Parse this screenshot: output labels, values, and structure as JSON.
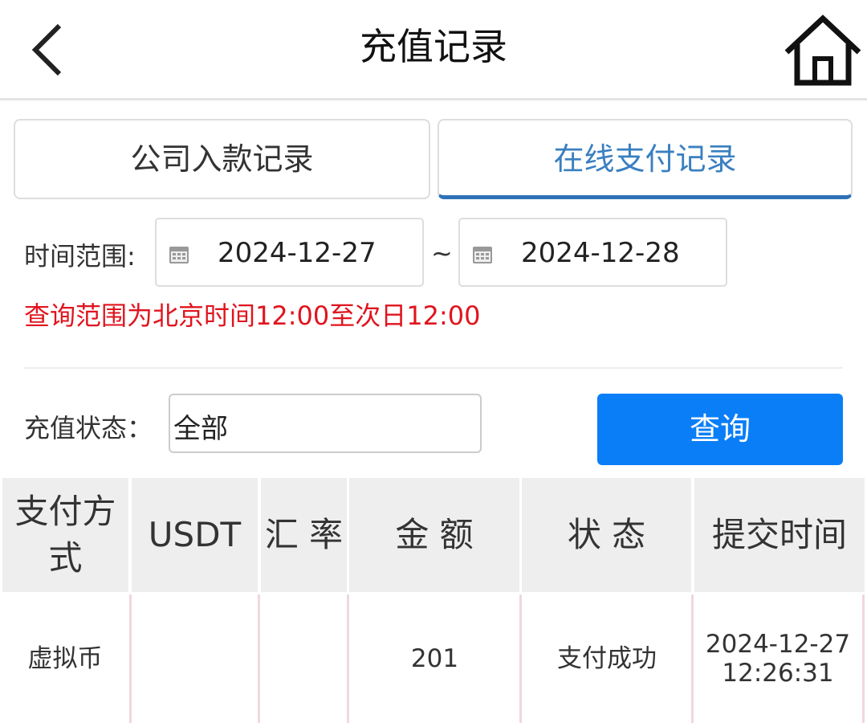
{
  "header": {
    "title": "充值记录",
    "back_icon": "chevron-left-icon",
    "home_icon": "home-icon"
  },
  "tabs": [
    {
      "label": "公司入款记录",
      "active": false
    },
    {
      "label": "在线支付记录",
      "active": true
    }
  ],
  "filter": {
    "time_range_label": "时间范围:",
    "start_date": "2024-12-27",
    "separator": "~",
    "end_date": "2024-12-28",
    "notice": "查询范围为北京时间12:00至次日12:00",
    "status_label": "充值状态：",
    "status_value": "全部",
    "query_button": "查询"
  },
  "table": {
    "headers": [
      "支付方式",
      "USDT",
      "汇 率",
      "金 额",
      "状 态",
      "提交时间"
    ],
    "rows": [
      {
        "method": "虚拟币",
        "usdt": "",
        "rate": "",
        "amount": "201",
        "status": "支付成功",
        "time_date": "2024-12-27",
        "time_clock": "12:26:31"
      }
    ]
  },
  "colors": {
    "accent": "#0a7ef7",
    "active_tab": "#3a7fc1",
    "notice": "#e0141e"
  }
}
